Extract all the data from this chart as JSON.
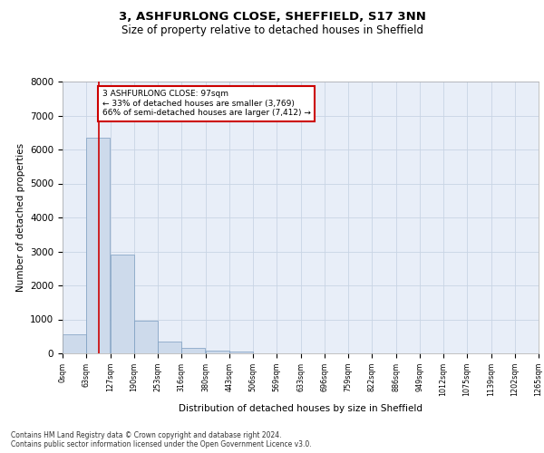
{
  "title": "3, ASHFURLONG CLOSE, SHEFFIELD, S17 3NN",
  "subtitle": "Size of property relative to detached houses in Sheffield",
  "xlabel": "Distribution of detached houses by size in Sheffield",
  "ylabel": "Number of detached properties",
  "bin_edges": [
    0,
    63,
    127,
    190,
    253,
    316,
    380,
    443,
    506,
    569,
    633,
    696,
    759,
    822,
    886,
    949,
    1012,
    1075,
    1139,
    1202,
    1265
  ],
  "bar_heights": [
    560,
    6350,
    2900,
    960,
    340,
    150,
    90,
    60,
    10,
    5,
    2,
    1,
    0,
    0,
    0,
    0,
    0,
    0,
    0,
    0
  ],
  "bar_color": "#cddaeb",
  "bar_edge_color": "#7a9cbf",
  "property_size": 97,
  "red_line_color": "#cc0000",
  "annotation_text": "3 ASHFURLONG CLOSE: 97sqm\n← 33% of detached houses are smaller (3,769)\n66% of semi-detached houses are larger (7,412) →",
  "annotation_box_color": "#cc0000",
  "ylim": [
    0,
    8000
  ],
  "yticks": [
    0,
    1000,
    2000,
    3000,
    4000,
    5000,
    6000,
    7000,
    8000
  ],
  "grid_color": "#c8d4e4",
  "background_color": "#e8eef8",
  "footer_line1": "Contains HM Land Registry data © Crown copyright and database right 2024.",
  "footer_line2": "Contains public sector information licensed under the Open Government Licence v3.0.",
  "title_fontsize": 9.5,
  "subtitle_fontsize": 8.5
}
